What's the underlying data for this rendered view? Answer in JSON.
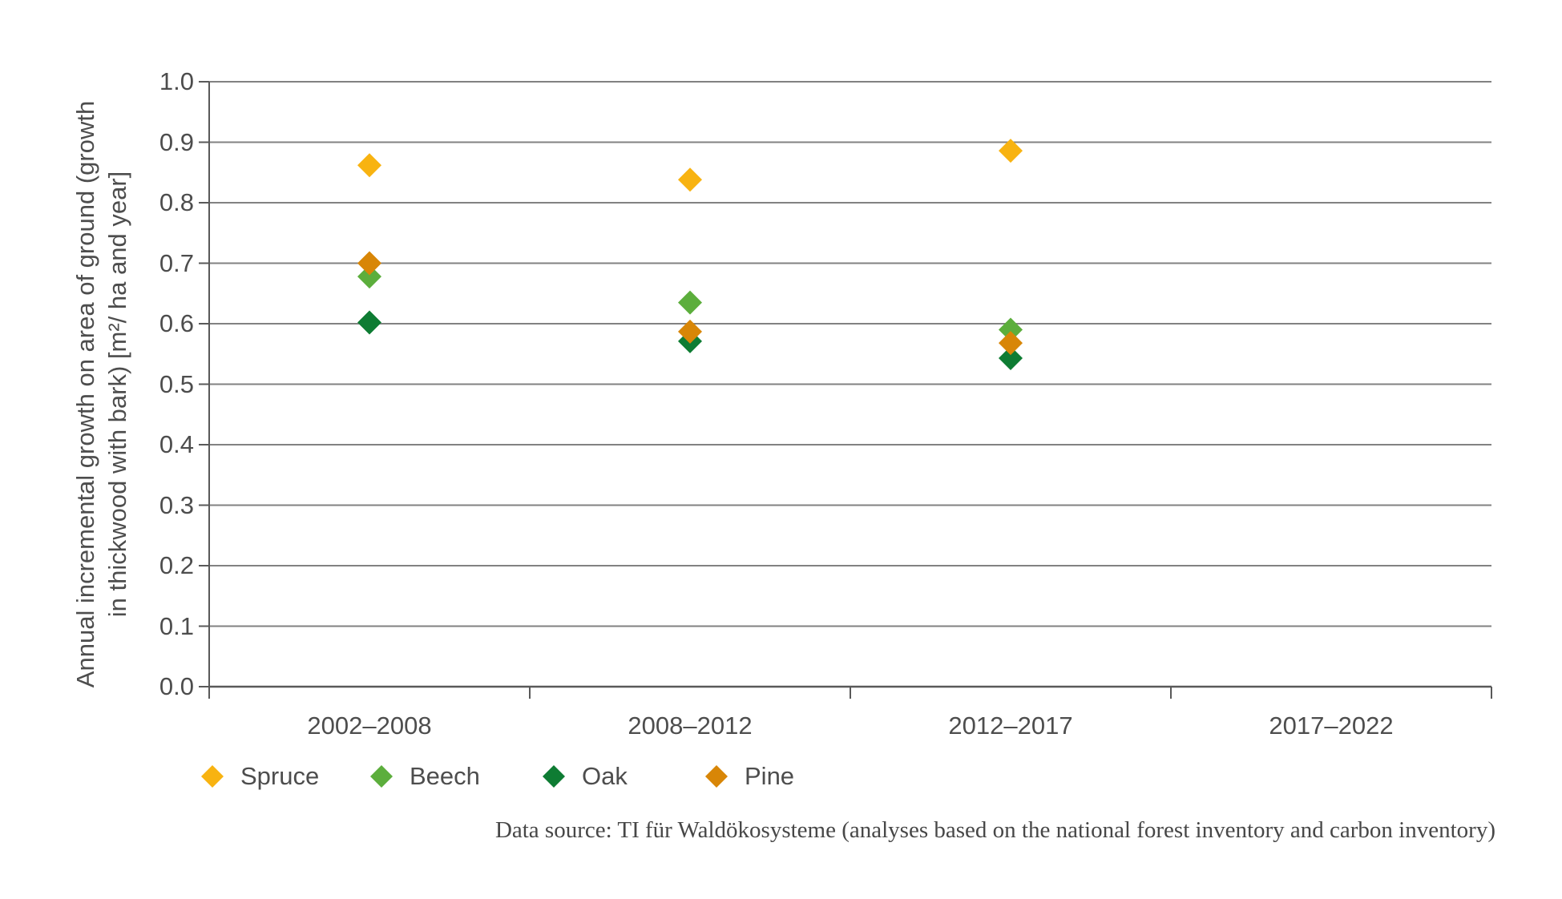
{
  "chart_data": {
    "type": "scatter",
    "title": "",
    "categories": [
      "2002–2008",
      "2008–2012",
      "2012–2017",
      "2017–2022"
    ],
    "series": [
      {
        "name": "Spruce",
        "color": "#f8b311",
        "values": [
          0.862,
          0.838,
          0.886,
          null
        ]
      },
      {
        "name": "Beech",
        "color": "#5cae3c",
        "values": [
          0.678,
          0.635,
          0.59,
          null
        ]
      },
      {
        "name": "Oak",
        "color": "#0e7c33",
        "values": [
          0.602,
          0.571,
          0.543,
          null
        ]
      },
      {
        "name": "Pine",
        "color": "#d88607",
        "values": [
          0.7,
          0.587,
          0.568,
          null
        ]
      }
    ],
    "marker": "diamond",
    "ylabel_line1": "Annual incremental growth on area of ground (growth",
    "ylabel_line2": "in thickwood with bark) [m²/ ha and year]",
    "xlabel": "",
    "ylim": [
      0.0,
      1.0
    ],
    "ytick_step": 0.1,
    "ytick_labels": [
      "0.0",
      "0.1",
      "0.2",
      "0.3",
      "0.4",
      "0.5",
      "0.6",
      "0.7",
      "0.8",
      "0.9",
      "1.0"
    ],
    "grid": true,
    "legend_position": "bottom",
    "style": {
      "grid_color": "#828282",
      "axis_color": "#595959",
      "text_color": "#4d4d4d"
    }
  },
  "source_note": "Data source: TI für Waldökosysteme (analyses based on the national forest inventory and carbon inventory)"
}
